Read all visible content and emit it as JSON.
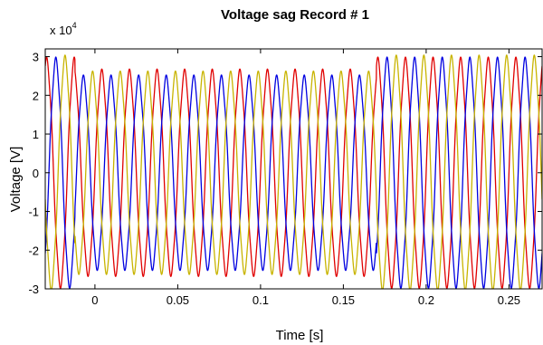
{
  "chart_data": {
    "type": "line",
    "title": "Voltage sag Record # 1",
    "xlabel": "Time [s]",
    "ylabel": "Voltage [V]",
    "y_multiplier": "x 10",
    "y_multiplier_exponent": "4",
    "xlim": [
      -0.03,
      0.27
    ],
    "ylim": [
      -30000,
      32000
    ],
    "x_ticks": [
      0,
      0.05,
      0.1,
      0.15,
      0.2,
      0.25
    ],
    "x_tick_labels": [
      "0",
      "0.05",
      "0.1",
      "0.15",
      "0.2",
      "0.25"
    ],
    "y_ticks": [
      -30000,
      -20000,
      -10000,
      0,
      10000,
      20000,
      30000
    ],
    "y_tick_labels": [
      "-3",
      "-2",
      "-1",
      "0",
      "1",
      "2",
      "3"
    ],
    "grid": false,
    "frequency_hz": 60,
    "sag_interval": [
      -0.012,
      0.17
    ],
    "series": [
      {
        "color": "#e00000",
        "phase_deg": 0,
        "amplitude_normal": 29000,
        "amplitude_sag": 26000
      },
      {
        "color": "#0000e0",
        "phase_deg": -120,
        "amplitude_normal": 29000,
        "amplitude_sag": 24500
      },
      {
        "color": "#c8b400",
        "phase_deg": 120,
        "amplitude_normal": 29500,
        "amplitude_sag": 25500
      }
    ]
  }
}
